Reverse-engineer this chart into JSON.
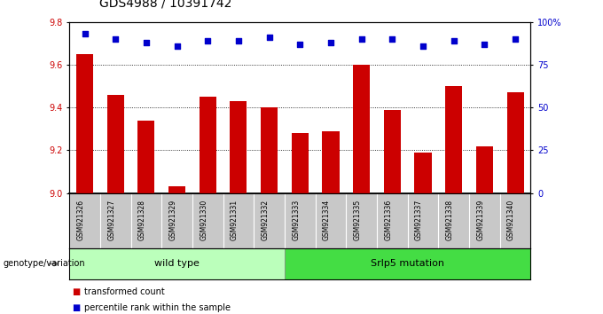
{
  "title": "GDS4988 / 10391742",
  "samples": [
    "GSM921326",
    "GSM921327",
    "GSM921328",
    "GSM921329",
    "GSM921330",
    "GSM921331",
    "GSM921332",
    "GSM921333",
    "GSM921334",
    "GSM921335",
    "GSM921336",
    "GSM921337",
    "GSM921338",
    "GSM921339",
    "GSM921340"
  ],
  "transformed_count": [
    9.65,
    9.46,
    9.34,
    9.03,
    9.45,
    9.43,
    9.4,
    9.28,
    9.29,
    9.6,
    9.39,
    9.19,
    9.5,
    9.22,
    9.47
  ],
  "percentile_rank": [
    93,
    90,
    88,
    86,
    89,
    89,
    91,
    87,
    88,
    90,
    90,
    86,
    89,
    87,
    90
  ],
  "ylim_left": [
    9.0,
    9.8
  ],
  "ylim_right": [
    0,
    100
  ],
  "yticks_left": [
    9.0,
    9.2,
    9.4,
    9.6,
    9.8
  ],
  "yticks_right": [
    0,
    25,
    50,
    75,
    100
  ],
  "ytick_labels_right": [
    "0",
    "25",
    "50",
    "75",
    "100%"
  ],
  "bar_color": "#cc0000",
  "dot_color": "#0000cc",
  "group1_label": "wild type",
  "group2_label": "Srlp5 mutation",
  "group1_indices": [
    0,
    1,
    2,
    3,
    4,
    5,
    6
  ],
  "group2_indices": [
    7,
    8,
    9,
    10,
    11,
    12,
    13,
    14
  ],
  "group1_color": "#bbffbb",
  "group2_color": "#44dd44",
  "legend_bar_label": "transformed count",
  "legend_dot_label": "percentile rank within the sample",
  "genotype_label": "genotype/variation",
  "sample_bg_color": "#c8c8c8",
  "plot_bg_color": "#ffffff",
  "title_fontsize": 10,
  "tick_fontsize": 7,
  "dot_size": 25,
  "grid_color": "#000000",
  "bar_width": 0.55
}
